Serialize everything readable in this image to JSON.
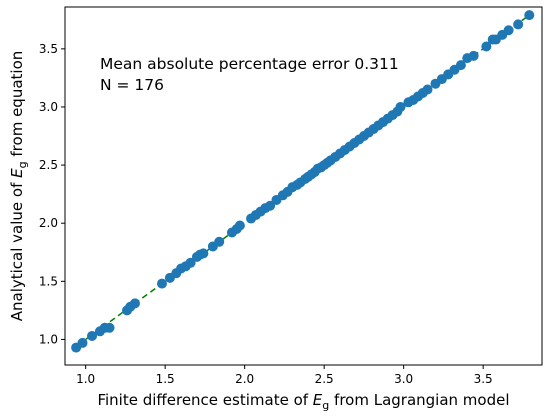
{
  "chart_data": {
    "type": "scatter",
    "title": "",
    "xlabel": {
      "pre": "Finite difference estimate of ",
      "sym": "E",
      "sub": "g",
      "post": " from Lagrangian model"
    },
    "ylabel": {
      "pre": "Analytical value of ",
      "sym": "E",
      "sub": "g",
      "post": " from equation"
    },
    "xlim": [
      0.87,
      3.87
    ],
    "ylim": [
      0.78,
      3.86
    ],
    "xticks": [
      {
        "v": 1.0,
        "label": "1.0"
      },
      {
        "v": 1.5,
        "label": "1.5"
      },
      {
        "v": 2.0,
        "label": "2.0"
      },
      {
        "v": 2.5,
        "label": "2.5"
      },
      {
        "v": 3.0,
        "label": "3.0"
      },
      {
        "v": 3.5,
        "label": "3.5"
      }
    ],
    "yticks": [
      {
        "v": 1.0,
        "label": "1.0"
      },
      {
        "v": 1.5,
        "label": "1.5"
      },
      {
        "v": 2.0,
        "label": "2.0"
      },
      {
        "v": 2.5,
        "label": "2.5"
      },
      {
        "v": 3.0,
        "label": "3.0"
      },
      {
        "v": 3.5,
        "label": "3.5"
      }
    ],
    "grid": false,
    "annotations": [
      "Mean absolute percentage error 0.311",
      "N = 176"
    ],
    "reference_line": {
      "x": [
        0.95,
        3.8
      ],
      "y": [
        0.95,
        3.8
      ],
      "style": "dashed",
      "color": "#008000"
    },
    "marker_color": "#1f77b4",
    "points": {
      "x": [
        0.94,
        0.98,
        1.04,
        1.09,
        1.12,
        1.15,
        1.26,
        1.28,
        1.31,
        1.48,
        1.53,
        1.57,
        1.6,
        1.63,
        1.66,
        1.7,
        1.72,
        1.74,
        1.8,
        1.84,
        1.92,
        1.95,
        1.97,
        2.04,
        2.07,
        2.1,
        2.13,
        2.16,
        2.2,
        2.24,
        2.27,
        2.3,
        2.33,
        2.35,
        2.38,
        2.4,
        2.42,
        2.44,
        2.46,
        2.48,
        2.5,
        2.52,
        2.54,
        2.57,
        2.6,
        2.63,
        2.66,
        2.69,
        2.72,
        2.75,
        2.78,
        2.81,
        2.84,
        2.87,
        2.9,
        2.93,
        2.96,
        2.98,
        3.03,
        3.06,
        3.09,
        3.12,
        3.15,
        3.2,
        3.24,
        3.28,
        3.32,
        3.36,
        3.4,
        3.44,
        3.52,
        3.56,
        3.58,
        3.62,
        3.66,
        3.72,
        3.79
      ],
      "y": [
        0.93,
        0.97,
        1.03,
        1.07,
        1.1,
        1.1,
        1.25,
        1.28,
        1.31,
        1.48,
        1.53,
        1.57,
        1.61,
        1.63,
        1.66,
        1.71,
        1.73,
        1.74,
        1.8,
        1.84,
        1.92,
        1.95,
        1.98,
        2.04,
        2.07,
        2.1,
        2.13,
        2.15,
        2.2,
        2.24,
        2.27,
        2.31,
        2.33,
        2.35,
        2.38,
        2.4,
        2.42,
        2.44,
        2.47,
        2.48,
        2.5,
        2.52,
        2.54,
        2.57,
        2.6,
        2.63,
        2.66,
        2.69,
        2.72,
        2.75,
        2.78,
        2.81,
        2.84,
        2.87,
        2.9,
        2.93,
        2.96,
        3.0,
        3.04,
        3.06,
        3.09,
        3.12,
        3.15,
        3.2,
        3.24,
        3.28,
        3.32,
        3.36,
        3.42,
        3.44,
        3.52,
        3.58,
        3.58,
        3.62,
        3.66,
        3.71,
        3.79
      ]
    }
  }
}
